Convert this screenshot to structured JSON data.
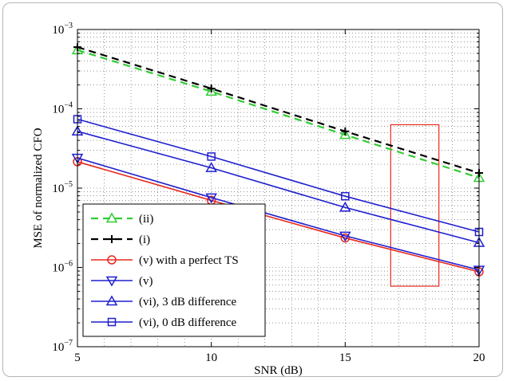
{
  "chart_data": {
    "type": "line",
    "xlabel": "SNR (dB)",
    "ylabel": "MSE of normalized CFO",
    "xlim": [
      5,
      20
    ],
    "ylim": [
      1e-07,
      0.001
    ],
    "yscale": "log",
    "grid": true,
    "x_ticks": [
      "5",
      "10",
      "15",
      "20"
    ],
    "y_ticks": [
      {
        "value": 1e-07,
        "base": "10",
        "exp": "−7"
      },
      {
        "value": 1e-06,
        "base": "10",
        "exp": "−6"
      },
      {
        "value": 1e-05,
        "base": "10",
        "exp": "−5"
      },
      {
        "value": 0.0001,
        "base": "10",
        "exp": "−4"
      },
      {
        "value": 0.001,
        "base": "10",
        "exp": "−3"
      }
    ],
    "legend_position": "bottom-left",
    "x": [
      5,
      10,
      15,
      20
    ],
    "series": [
      {
        "name": "(ii)",
        "color": "#33cc33",
        "dash": "dashed",
        "marker": "triangle-up",
        "values": [
          0.00055,
          0.000165,
          4.7e-05,
          1.35e-05
        ]
      },
      {
        "name": "(i)",
        "color": "#000000",
        "dash": "dashed",
        "marker": "plus",
        "values": [
          0.0006,
          0.00018,
          5.2e-05,
          1.55e-05
        ]
      },
      {
        "name": "(v) with a perfect TS",
        "color": "#e8281e",
        "dash": "solid",
        "marker": "circle",
        "values": [
          2.15e-05,
          7e-06,
          2.35e-06,
          8.8e-07
        ]
      },
      {
        "name": "(v)",
        "color": "#1f1fcf",
        "dash": "solid",
        "marker": "triangle-down",
        "values": [
          2.4e-05,
          7.6e-06,
          2.5e-06,
          9.3e-07
        ]
      },
      {
        "name": "(vi), 3 dB difference",
        "color": "#1f1fcf",
        "dash": "solid",
        "marker": "triangle-up",
        "values": [
          5.2e-05,
          1.8e-05,
          5.7e-06,
          2.05e-06
        ]
      },
      {
        "name": "(vi), 0 dB difference",
        "color": "#1f1fcf",
        "dash": "solid",
        "marker": "square",
        "values": [
          7.4e-05,
          2.5e-05,
          7.9e-06,
          2.8e-06
        ]
      }
    ],
    "annotations": [
      {
        "type": "rectangle",
        "color": "#e8281e",
        "x_range": [
          16.7,
          18.5
        ],
        "y_range": [
          5.8e-07,
          6.3e-05
        ]
      }
    ]
  }
}
